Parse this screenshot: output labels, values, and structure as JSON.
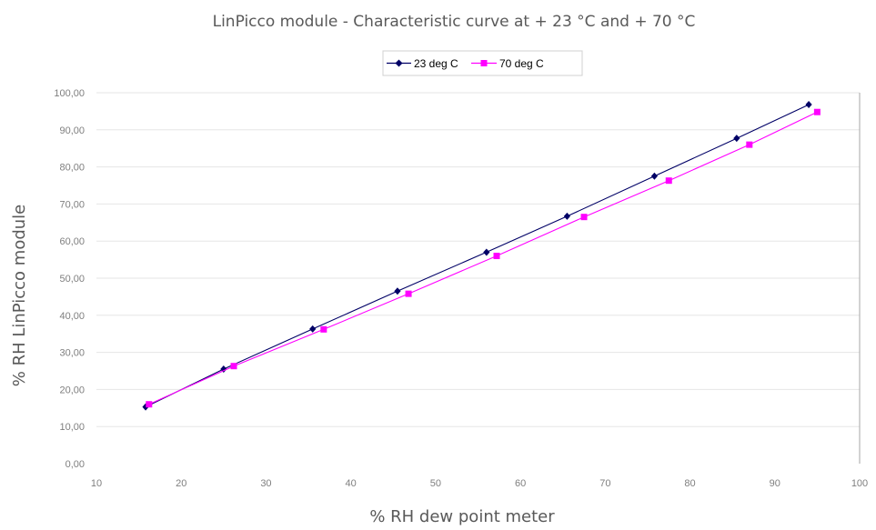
{
  "chart_data": {
    "type": "line",
    "title": "LinPicco module - Characteristic curve at + 23 °C and + 70 °C",
    "xlabel": "% RH dew point meter",
    "ylabel": "% RH LinPicco module",
    "xlim": [
      10,
      100
    ],
    "ylim": [
      0,
      100
    ],
    "xticks": [
      "10",
      "20",
      "30",
      "40",
      "50",
      "60",
      "70",
      "80",
      "90",
      "100"
    ],
    "yticks": [
      "0,00",
      "10,00",
      "20,00",
      "30,00",
      "40,00",
      "50,00",
      "60,00",
      "70,00",
      "80,00",
      "90,00",
      "100,00"
    ],
    "grid": "horizontal",
    "legend_position": "top-center",
    "series": [
      {
        "name": "23 deg C",
        "color": "#000066",
        "marker": "diamond",
        "x": [
          15.8,
          25.0,
          35.5,
          45.5,
          56.0,
          65.5,
          75.8,
          85.5,
          94.0
        ],
        "y": [
          15.3,
          25.5,
          36.3,
          46.5,
          57.0,
          66.7,
          77.5,
          87.7,
          96.8
        ]
      },
      {
        "name": "70 deg C",
        "color": "#ff00ff",
        "marker": "square",
        "x": [
          16.2,
          26.2,
          36.8,
          46.8,
          57.2,
          67.5,
          77.5,
          87.0,
          95.0
        ],
        "y": [
          16.0,
          26.3,
          36.2,
          45.8,
          56.0,
          66.5,
          76.3,
          86.0,
          94.8
        ]
      }
    ]
  }
}
